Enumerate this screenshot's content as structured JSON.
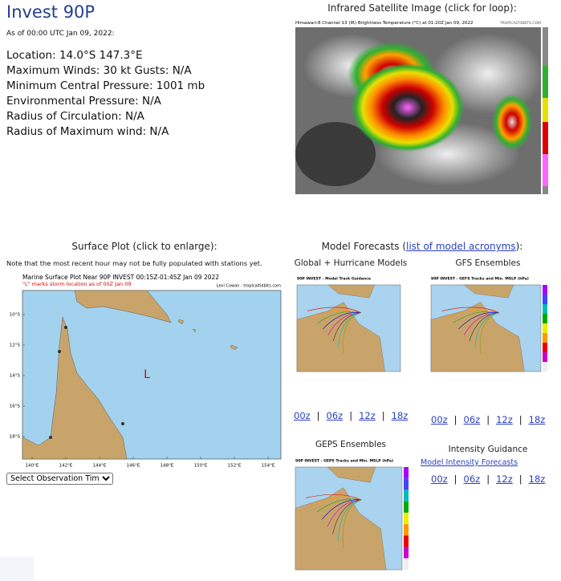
{
  "header": {
    "title": "Invest 90P",
    "as_of": "As of 00:00 UTC Jan 09, 2022:"
  },
  "details": [
    "Location: 14.0°S 147.3°E",
    "Maximum Winds: 30 kt  Gusts: N/A",
    "Minimum Central Pressure: 1001 mb",
    "Environmental Pressure: N/A",
    "Radius of Circulation: N/A",
    "Radius of Maximum wind: N/A"
  ],
  "satellite": {
    "heading": "Infrared Satellite Image (click for loop):",
    "image_title": "Himawari-8 Channel 13 (IR) Brightness Temperature (°C) at 01:20Z Jan 09, 2022",
    "credit": "TROPICALTIDBITS.COM"
  },
  "surface": {
    "heading": "Surface Plot (click to enlarge):",
    "note": "Note that the most recent hour may not be fully populated with stations yet.",
    "plot_title": "Marine Surface Plot Near 90P INVEST 00:15Z-01:45Z Jan 09 2022",
    "plot_subtitle": "\"L\" marks storm location as of 00Z Jan 09",
    "credit": "Levi Cowan - tropicaltidbits.com",
    "storm_marker": "L",
    "lat_labels": [
      "10°S",
      "12°S",
      "14°S",
      "16°S",
      "18°S"
    ],
    "lon_labels": [
      "140°E",
      "142°E",
      "144°E",
      "146°E",
      "148°E",
      "150°E",
      "152°E",
      "154°E"
    ],
    "select": "Select Observation Time..."
  },
  "models": {
    "heading_prefix": "Model Forecasts (",
    "heading_link": "list of model acronyms",
    "heading_suffix": "):",
    "separator": "|",
    "global": {
      "title": "Global + Hurricane Models",
      "image_title": "90P INVEST - Model Track Guidance",
      "links": [
        "00z",
        "06z",
        "12z",
        "18z"
      ]
    },
    "gfs": {
      "title": "GFS Ensembles",
      "image_title": "90P INVEST - GEFS Tracks and Min. MSLP (hPa)",
      "links": [
        "00z",
        "06z",
        "12z",
        "18z"
      ]
    },
    "geps": {
      "title": "GEPS Ensembles",
      "image_title": "90P INVEST - GEPS Tracks and Min. MSLP (hPa)"
    },
    "intensity": {
      "title": "Intensity Guidance",
      "link": "Model Intensity Forecasts",
      "links": [
        "00z",
        "06z",
        "12z",
        "18z"
      ]
    }
  }
}
